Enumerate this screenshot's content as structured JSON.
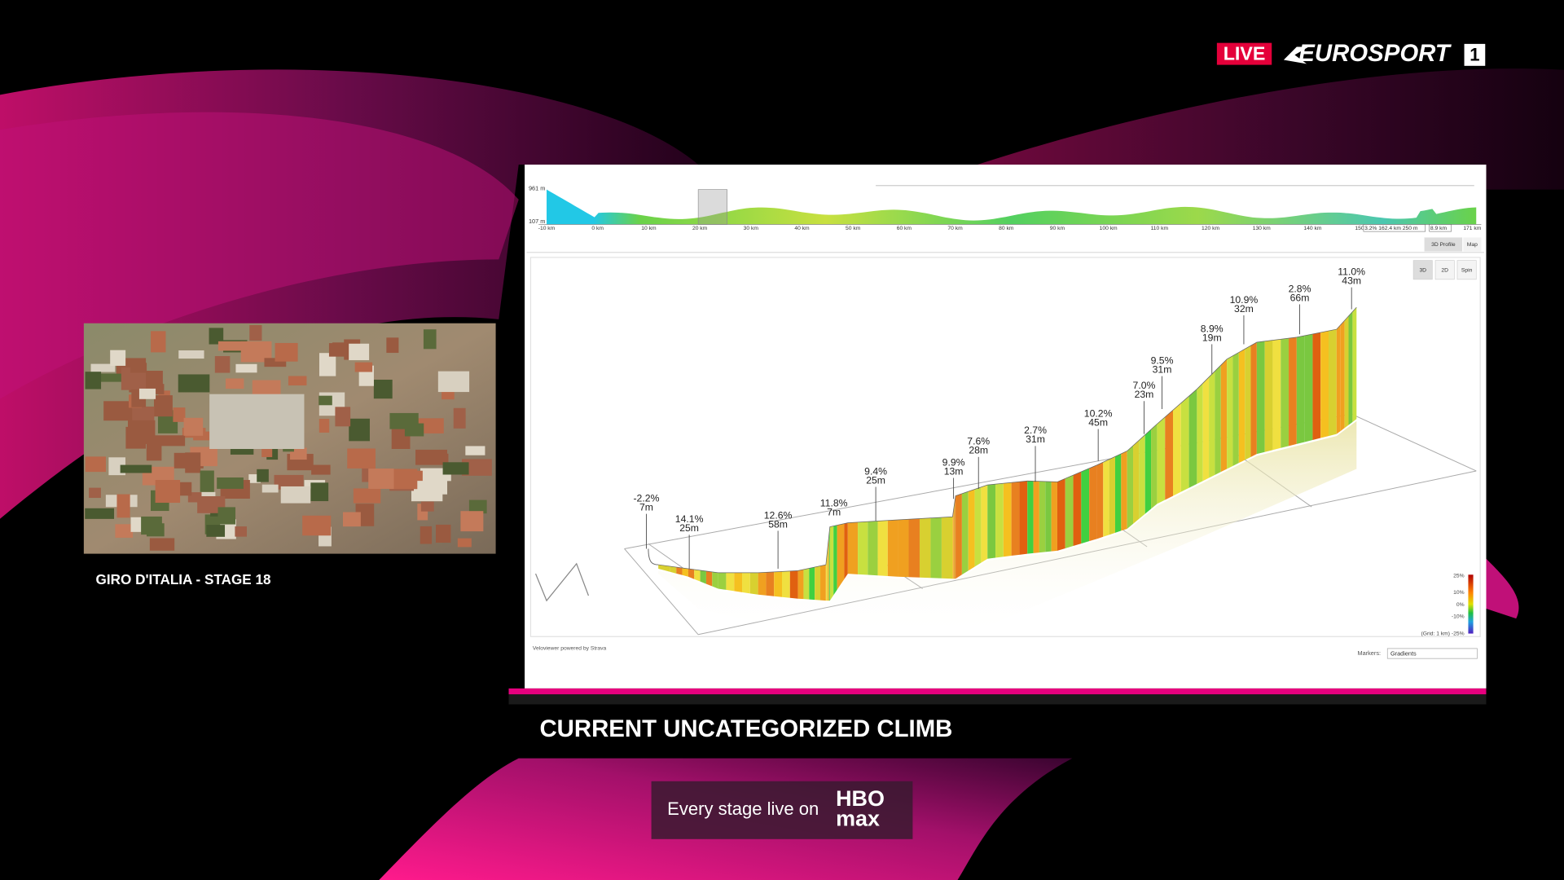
{
  "header": {
    "live": "LIVE",
    "brand": "EUROSPORT",
    "channel": "1"
  },
  "inset": {
    "caption": "GIRO D'ITALIA - STAGE 18"
  },
  "profile": {
    "overview": {
      "max_elevation": "961 m",
      "min_elevation": "107 m",
      "distance_labels": [
        "-10 km",
        "0 km",
        "10 km",
        "20 km",
        "30 km",
        "40 km",
        "50 km",
        "60 km",
        "70 km",
        "80 km",
        "90 km",
        "100 km",
        "110 km",
        "120 km",
        "130 km",
        "140 km",
        "150",
        "171 km"
      ],
      "marker_readout": [
        "3.2% 162.4 km 250 m",
        "8.9 km"
      ],
      "tabs": [
        "3D Profile",
        "Map"
      ]
    },
    "view_buttons": [
      "3D",
      "2D",
      "Spin"
    ],
    "annotations": [
      {
        "grade": "-2.2%",
        "length": "7m"
      },
      {
        "grade": "14.1%",
        "length": "25m"
      },
      {
        "grade": "12.6%",
        "length": "58m"
      },
      {
        "grade": "11.8%",
        "length": "7m"
      },
      {
        "grade": "9.4%",
        "length": "25m"
      },
      {
        "grade": "9.9%",
        "length": "13m"
      },
      {
        "grade": "7.6%",
        "length": "28m"
      },
      {
        "grade": "2.7%",
        "length": "31m"
      },
      {
        "grade": "10.2%",
        "length": "45m"
      },
      {
        "grade": "7.0%",
        "length": "23m"
      },
      {
        "grade": "9.5%",
        "length": "31m"
      },
      {
        "grade": "8.9%",
        "length": "19m"
      },
      {
        "grade": "10.9%",
        "length": "32m"
      },
      {
        "grade": "2.8%",
        "length": "66m"
      },
      {
        "grade": "11.0%",
        "length": "43m"
      }
    ],
    "legend": [
      "25%",
      "10%",
      "0%",
      "-10%",
      "(Grid: 1 km) -25%"
    ],
    "credit": "Veloviewer powered by Strava",
    "markers_label": "Markers:",
    "markers_value": "Gradients"
  },
  "lower_third": {
    "title": "CURRENT UNCATEGORIZED CLIMB"
  },
  "promo": {
    "text": "Every stage live on",
    "logo_top": "HBO",
    "logo_bottom": "max"
  }
}
